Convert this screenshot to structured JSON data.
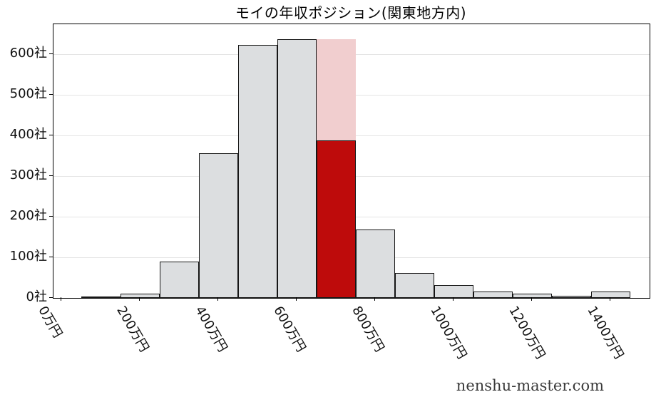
{
  "watermark": "nenshu-master.com",
  "chart_data": {
    "type": "bar",
    "subtype": "histogram",
    "title": "モイの年収ポジション(関東地方内)",
    "categories": [
      "100万円",
      "200万円",
      "300万円",
      "400万円",
      "500万円",
      "600万円",
      "700万円",
      "800万円",
      "900万円",
      "1000万円",
      "1100万円",
      "1200万円",
      "1300万円",
      "1400万円"
    ],
    "values": [
      2,
      10,
      89,
      357,
      623,
      637,
      637,
      168,
      62,
      32,
      15,
      10,
      6,
      16
    ],
    "unit_y": "社",
    "unit_x": "万円",
    "bin_width": 100,
    "highlight": {
      "index": 6,
      "category": "700万円",
      "total_value": 637,
      "position_value": 388
    },
    "x_tick_values": [
      0,
      200,
      400,
      600,
      800,
      1000,
      1200,
      1400
    ],
    "x_tick_labels": [
      "0万円",
      "200万円",
      "400万円",
      "600万円",
      "800万円",
      "1000万円",
      "1200万円",
      "1400万円"
    ],
    "y_tick_values": [
      0,
      100,
      200,
      300,
      400,
      500,
      600
    ],
    "y_tick_labels": [
      "0社",
      "100社",
      "200社",
      "300社",
      "400社",
      "500社",
      "600社"
    ],
    "xlim": [
      -20,
      1500
    ],
    "ylim": [
      0,
      674
    ],
    "grid": "horizontal",
    "legend": "none",
    "colors": {
      "bar_fill": "#dcdee0",
      "bar_edge": "#161616",
      "highlight_fill": "#f1cecf",
      "highlight_red": "#be0b0b",
      "gridline": "#e4e4e4",
      "axis": "#000000",
      "text": "#111111"
    }
  }
}
